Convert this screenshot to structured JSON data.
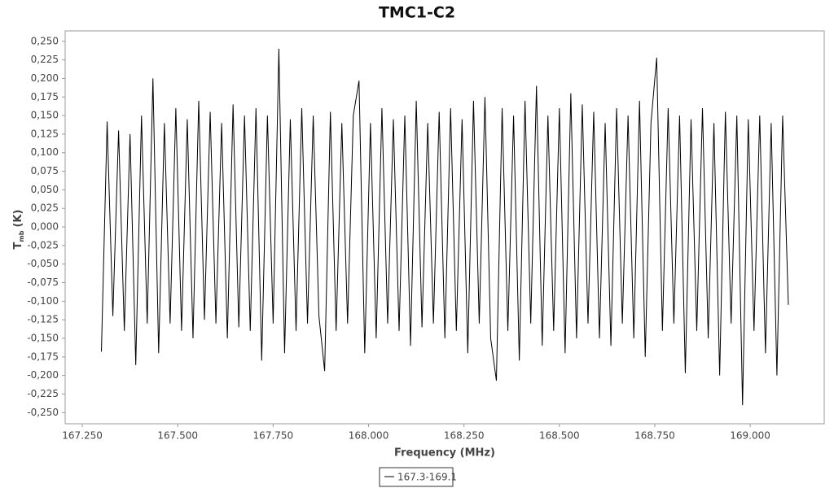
{
  "chart_data": {
    "type": "line",
    "title": "TMC1-C2",
    "xlabel": "Frequency (MHz)",
    "ylabel": [
      "T",
      "mb",
      "(K)"
    ],
    "x": [
      167.3,
      167.315,
      167.33,
      167.345,
      167.36,
      167.375,
      167.39,
      167.405,
      167.42,
      167.435,
      167.45,
      167.465,
      167.48,
      167.495,
      167.51,
      167.525,
      167.54,
      167.555,
      167.57,
      167.585,
      167.6,
      167.615,
      167.63,
      167.645,
      167.66,
      167.675,
      167.69,
      167.705,
      167.72,
      167.735,
      167.75,
      167.765,
      167.78,
      167.795,
      167.81,
      167.825,
      167.84,
      167.855,
      167.87,
      167.885,
      167.9,
      167.915,
      167.93,
      167.945,
      167.96,
      167.975,
      167.99,
      168.005,
      168.02,
      168.035,
      168.05,
      168.065,
      168.08,
      168.095,
      168.11,
      168.125,
      168.14,
      168.155,
      168.17,
      168.185,
      168.2,
      168.215,
      168.23,
      168.245,
      168.26,
      168.275,
      168.29,
      168.305,
      168.32,
      168.335,
      168.35,
      168.365,
      168.38,
      168.395,
      168.41,
      168.425,
      168.44,
      168.455,
      168.47,
      168.485,
      168.5,
      168.515,
      168.53,
      168.545,
      168.56,
      168.575,
      168.59,
      168.605,
      168.62,
      168.635,
      168.65,
      168.665,
      168.68,
      168.695,
      168.71,
      168.725,
      168.74,
      168.755,
      168.77,
      168.785,
      168.8,
      168.815,
      168.83,
      168.845,
      168.86,
      168.875,
      168.89,
      168.905,
      168.92,
      168.935,
      168.95,
      168.965,
      168.98,
      168.995,
      169.01,
      169.025,
      169.04,
      169.055,
      169.07,
      169.085,
      169.1
    ],
    "series": [
      {
        "name": "167.3-169.1",
        "color": "#000000",
        "values": [
          -0.168,
          0.142,
          -0.12,
          0.13,
          -0.14,
          0.125,
          -0.186,
          0.15,
          -0.13,
          0.2,
          -0.17,
          0.14,
          -0.13,
          0.16,
          -0.14,
          0.145,
          -0.15,
          0.17,
          -0.125,
          0.155,
          -0.13,
          0.14,
          -0.15,
          0.165,
          -0.135,
          0.15,
          -0.14,
          0.16,
          -0.18,
          0.15,
          -0.13,
          0.24,
          -0.17,
          0.145,
          -0.14,
          0.16,
          -0.13,
          0.15,
          -0.12,
          -0.194,
          0.155,
          -0.14,
          0.14,
          -0.13,
          0.15,
          0.197,
          -0.17,
          0.14,
          -0.15,
          0.16,
          -0.13,
          0.145,
          -0.14,
          0.15,
          -0.16,
          0.17,
          -0.135,
          0.14,
          -0.13,
          0.155,
          -0.15,
          0.16,
          -0.14,
          0.145,
          -0.17,
          0.17,
          -0.13,
          0.175,
          -0.15,
          -0.207,
          0.16,
          -0.14,
          0.15,
          -0.18,
          0.17,
          -0.13,
          0.19,
          -0.16,
          0.15,
          -0.14,
          0.16,
          -0.17,
          0.18,
          -0.15,
          0.165,
          -0.13,
          0.155,
          -0.15,
          0.14,
          -0.16,
          0.16,
          -0.13,
          0.15,
          -0.15,
          0.17,
          -0.175,
          0.14,
          0.228,
          -0.14,
          0.16,
          -0.13,
          0.15,
          -0.197,
          0.145,
          -0.14,
          0.16,
          -0.15,
          0.14,
          -0.2,
          0.155,
          -0.13,
          0.15,
          -0.24,
          0.145,
          -0.14,
          0.15,
          -0.17,
          0.14,
          -0.2,
          0.15,
          -0.105
        ]
      }
    ],
    "xlim": [
      167.205,
      169.194
    ],
    "ylim": [
      -0.265,
      0.264
    ],
    "xticks": [
      {
        "value": 167.25,
        "label": "167.250"
      },
      {
        "value": 167.5,
        "label": "167.500"
      },
      {
        "value": 167.75,
        "label": "167.750"
      },
      {
        "value": 168.0,
        "label": "168.000"
      },
      {
        "value": 168.25,
        "label": "168.250"
      },
      {
        "value": 168.5,
        "label": "168.500"
      },
      {
        "value": 168.75,
        "label": "168.750"
      },
      {
        "value": 169.0,
        "label": "169.000"
      }
    ],
    "yticks": [
      {
        "value": -0.25,
        "label": "-0,250"
      },
      {
        "value": -0.225,
        "label": "-0,225"
      },
      {
        "value": -0.2,
        "label": "-0,200"
      },
      {
        "value": -0.175,
        "label": "-0,175"
      },
      {
        "value": -0.15,
        "label": "-0,150"
      },
      {
        "value": -0.125,
        "label": "-0,125"
      },
      {
        "value": -0.1,
        "label": "-0,100"
      },
      {
        "value": -0.075,
        "label": "-0,075"
      },
      {
        "value": -0.05,
        "label": "-0,050"
      },
      {
        "value": -0.025,
        "label": "-0,025"
      },
      {
        "value": 0,
        "label": "0,000"
      },
      {
        "value": 0.025,
        "label": "0,025"
      },
      {
        "value": 0.05,
        "label": "0,050"
      },
      {
        "value": 0.075,
        "label": "0,075"
      },
      {
        "value": 0.1,
        "label": "0,100"
      },
      {
        "value": 0.125,
        "label": "0,125"
      },
      {
        "value": 0.15,
        "label": "0,150"
      },
      {
        "value": 0.175,
        "label": "0,175"
      },
      {
        "value": 0.2,
        "label": "0,200"
      },
      {
        "value": 0.225,
        "label": "0,225"
      },
      {
        "value": 0.25,
        "label": "0,250"
      }
    ],
    "grid": false,
    "legend": "bottom"
  }
}
